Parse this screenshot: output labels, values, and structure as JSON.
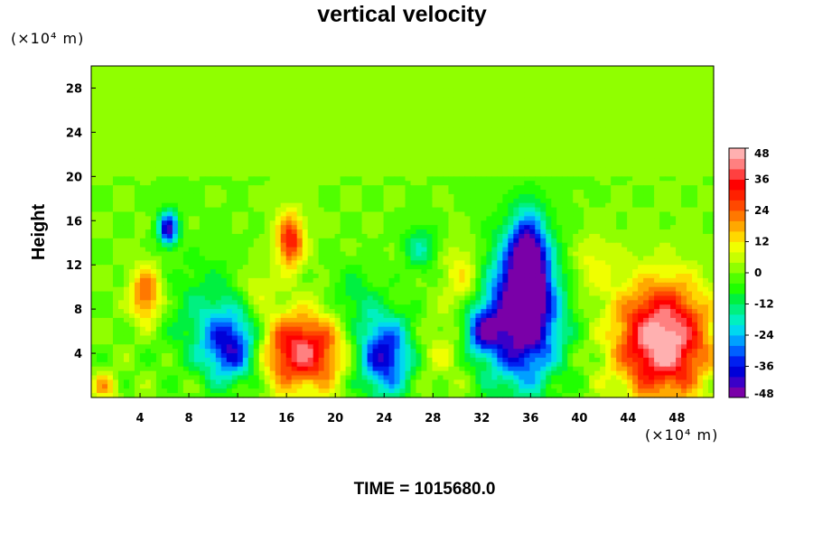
{
  "chart_data": {
    "type": "heatmap",
    "title": "vertical velocity",
    "ylabel": "Height",
    "xlabel": "",
    "x_unit": "(×10⁴ m)",
    "y_unit": "(×10⁴ m)",
    "xlim": [
      0,
      51
    ],
    "ylim": [
      0,
      30
    ],
    "x_ticks": [
      4,
      8,
      12,
      16,
      20,
      24,
      28,
      32,
      36,
      40,
      44,
      48
    ],
    "y_ticks": [
      4,
      8,
      12,
      16,
      20,
      24,
      28
    ],
    "colorbar": {
      "range": [
        -48,
        48
      ],
      "ticks": [
        48,
        36,
        24,
        12,
        0,
        -12,
        -24,
        -36,
        -48
      ],
      "colors": [
        "#7a00a8",
        "#3a00c8",
        "#0000d8",
        "#0020f0",
        "#0060ff",
        "#00a0ff",
        "#00d8f0",
        "#00f0c0",
        "#00f080",
        "#00f040",
        "#20ff00",
        "#50ff00",
        "#90ff00",
        "#c8ff00",
        "#f0ff00",
        "#ffd800",
        "#ffa800",
        "#ff7800",
        "#ff4800",
        "#ff2000",
        "#ff0000",
        "#ff4040",
        "#ff8080",
        "#ffb0b0"
      ]
    },
    "background_value": 0,
    "features": [
      {
        "x": 46.8,
        "y": 5.2,
        "sx": 2.6,
        "sy": 3.6,
        "value": 50
      },
      {
        "x": 17.2,
        "y": 4.2,
        "sx": 2.4,
        "sy": 2.4,
        "value": 40
      },
      {
        "x": 35.3,
        "y": 7.5,
        "sx": 2.2,
        "sy": 4.5,
        "value": -54
      },
      {
        "x": 35.8,
        "y": 12.5,
        "sx": 1.0,
        "sy": 3.0,
        "value": -38
      },
      {
        "x": 24.0,
        "y": 3.8,
        "sx": 1.6,
        "sy": 2.6,
        "value": -40
      },
      {
        "x": 11.5,
        "y": 4.5,
        "sx": 1.6,
        "sy": 2.2,
        "value": -36
      },
      {
        "x": 6.3,
        "y": 15.3,
        "sx": 0.6,
        "sy": 1.1,
        "value": -42
      },
      {
        "x": 4.5,
        "y": 9.3,
        "sx": 0.9,
        "sy": 1.8,
        "value": 26
      },
      {
        "x": 16.3,
        "y": 14.2,
        "sx": 0.8,
        "sy": 1.8,
        "value": 32
      },
      {
        "x": 30.5,
        "y": 11.0,
        "sx": 1.2,
        "sy": 2.2,
        "value": 14
      },
      {
        "x": 9.5,
        "y": 7.5,
        "sx": 2.5,
        "sy": 3.5,
        "value": -12
      },
      {
        "x": 27.0,
        "y": 13.5,
        "sx": 1.0,
        "sy": 1.5,
        "value": -16
      },
      {
        "x": 32.0,
        "y": 6.0,
        "sx": 1.0,
        "sy": 1.5,
        "value": -28
      },
      {
        "x": 21.5,
        "y": 9.0,
        "sx": 1.4,
        "sy": 2.0,
        "value": -10
      },
      {
        "x": 41.0,
        "y": 12.0,
        "sx": 1.4,
        "sy": 2.0,
        "value": 10
      },
      {
        "x": 1.0,
        "y": 1.0,
        "sx": 0.8,
        "sy": 0.8,
        "value": 16
      },
      {
        "x": 13.5,
        "y": 10.0,
        "sx": 1.0,
        "sy": 1.5,
        "value": 10
      },
      {
        "x": 28.5,
        "y": 4.0,
        "sx": 1.4,
        "sy": 2.0,
        "value": 8
      }
    ]
  },
  "footer": {
    "time_label": "TIME = 1015680.0"
  }
}
